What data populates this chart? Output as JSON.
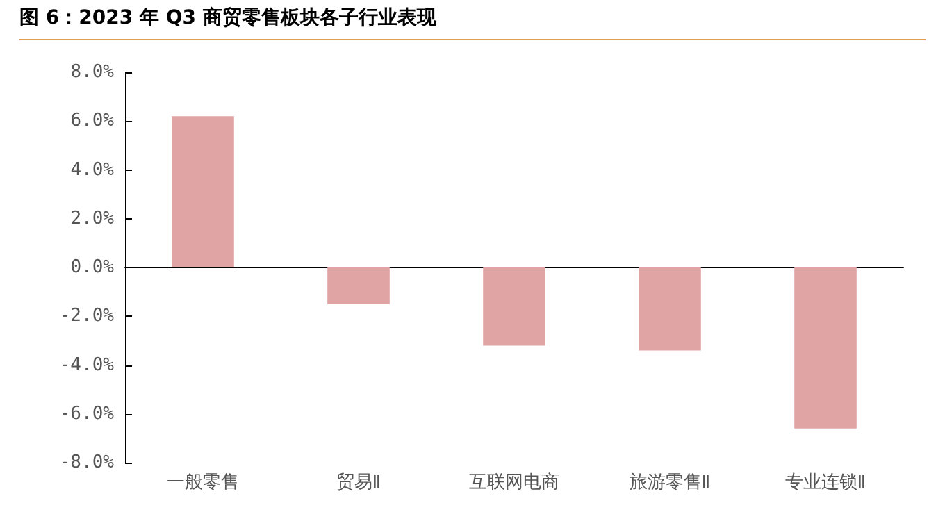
{
  "chart_data": {
    "type": "bar",
    "title": "图 6：2023 年 Q3 商贸零售板块各子行业表现",
    "categories": [
      "一般零售",
      "贸易Ⅱ",
      "互联网电商",
      "旅游零售Ⅱ",
      "专业连锁Ⅱ"
    ],
    "values": [
      6.2,
      -1.5,
      -3.2,
      -3.4,
      -6.6
    ],
    "color": "#e0a4a4",
    "ylim": [
      -8,
      8
    ],
    "yticks": [
      {
        "value": -8,
        "label": "-8.0%"
      },
      {
        "value": -6,
        "label": "-6.0%"
      },
      {
        "value": -4,
        "label": "-4.0%"
      },
      {
        "value": -2,
        "label": "-2.0%"
      },
      {
        "value": 0,
        "label": "0.0%"
      },
      {
        "value": 2,
        "label": "2.0%"
      },
      {
        "value": 4,
        "label": "4.0%"
      },
      {
        "value": 6,
        "label": "6.0%"
      },
      {
        "value": 8,
        "label": "8.0%"
      }
    ]
  }
}
